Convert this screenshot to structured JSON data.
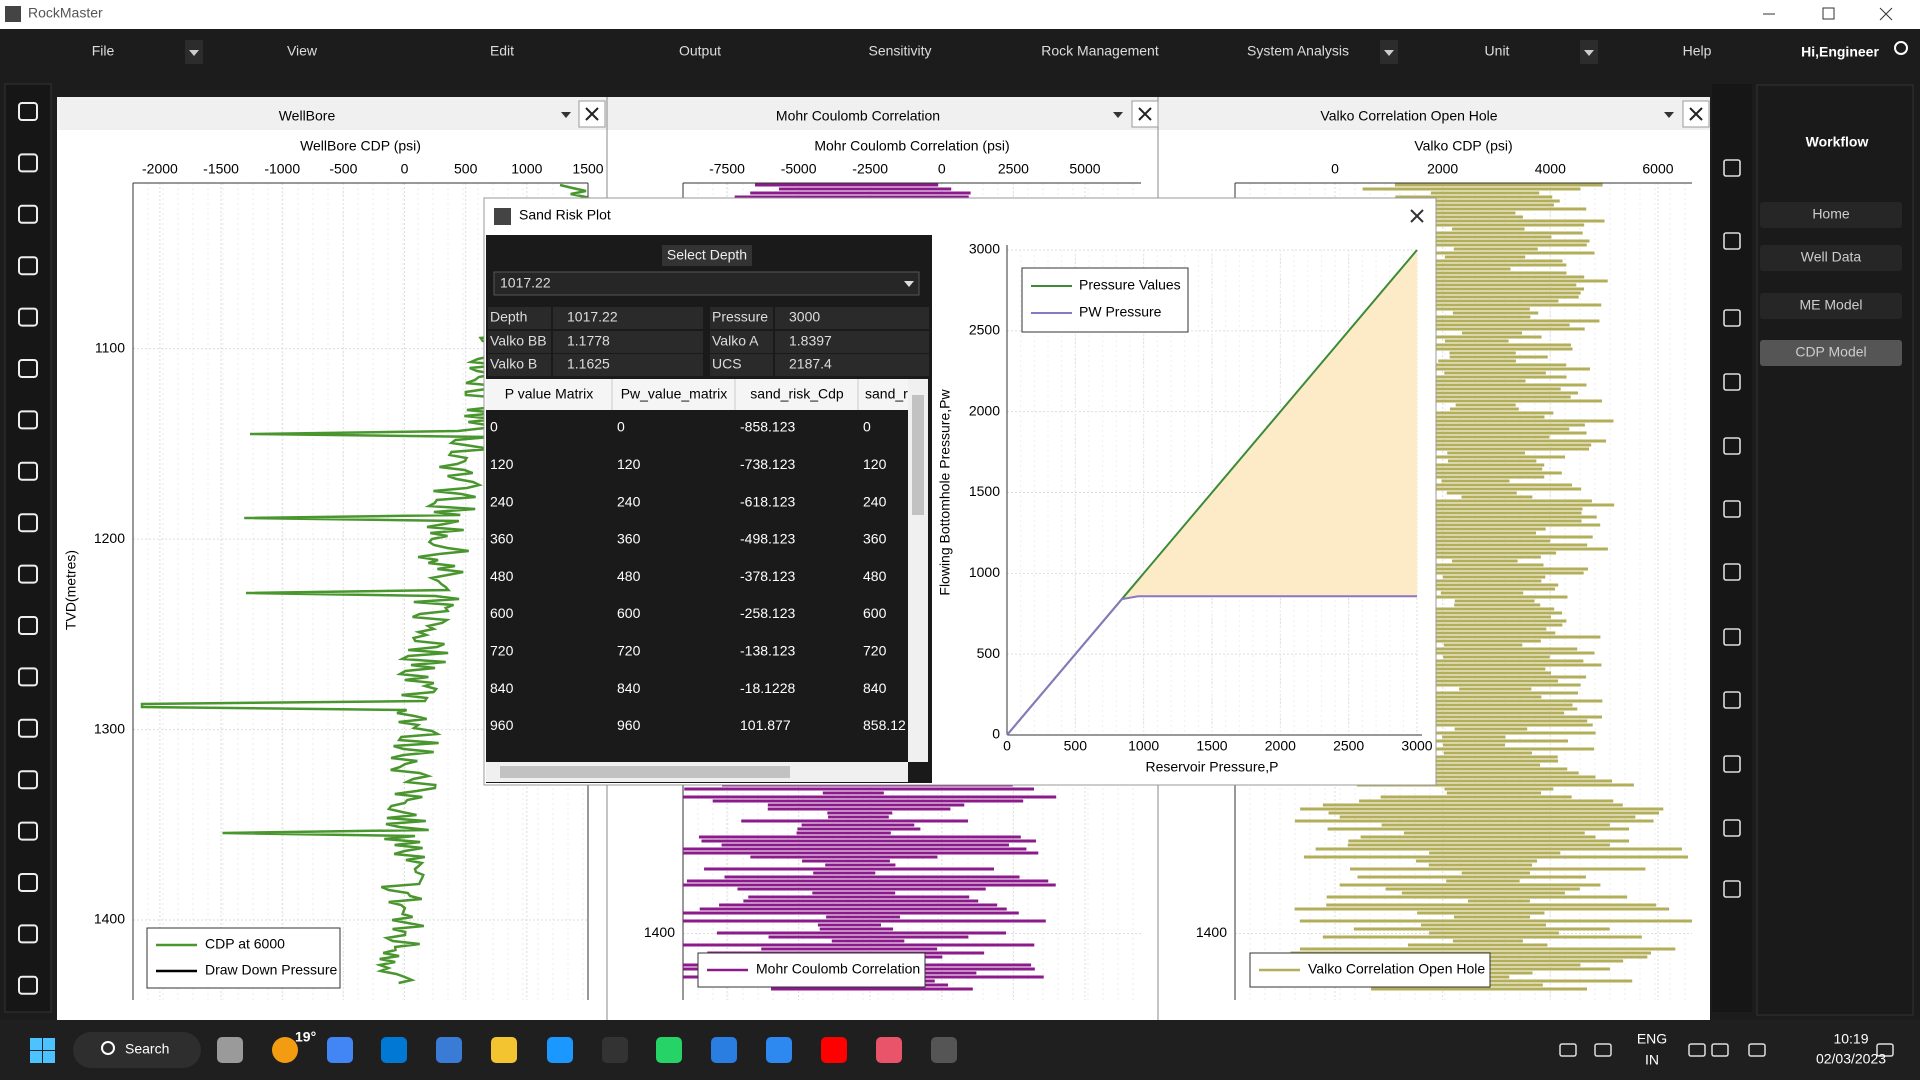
{
  "window": {
    "title": "RockMaster"
  },
  "menu": [
    "File",
    "View",
    "Edit",
    "Output",
    "Sensitivity",
    "Rock Management",
    "System Analysis",
    "Unit",
    "Help"
  ],
  "user": "Hi,Engineer",
  "panels": [
    {
      "title": "WellBore",
      "axis_title": "WellBore CDP (psi)",
      "ylabel": "TVD(metres)",
      "xticks": [
        -2000,
        -1500,
        -1000,
        -500,
        0,
        500,
        1000,
        1500
      ],
      "xlim": [
        -2220,
        1500
      ],
      "yticks": [
        1100,
        1200,
        1300,
        1400
      ],
      "ylim": [
        1013,
        1442
      ],
      "legend": [
        {
          "name": "CDP at 6000",
          "color": "#4a962e"
        },
        {
          "name": "Draw Down Pressure",
          "color": "#000000"
        }
      ]
    },
    {
      "title": "Mohr Coulomb Correlation",
      "axis_title": "Mohr Coulomb Correlation (psi)",
      "xticks": [
        -7500,
        -5000,
        -2500,
        0,
        2500,
        5000
      ],
      "xlim": [
        -9036,
        6955
      ],
      "yticks": [
        1400
      ],
      "ylim": [
        1005,
        1435
      ],
      "legend": [
        {
          "name": "Mohr Coulomb Correlation",
          "color": "#8b1a8b"
        }
      ]
    },
    {
      "title": "Valko Correlation Open Hole",
      "axis_title": "Valko CDP (psi)",
      "xticks": [
        0,
        2000,
        4000,
        6000
      ],
      "xlim": [
        -1858,
        6632
      ],
      "yticks": [
        1400
      ],
      "ylim": [
        1005,
        1435
      ],
      "legend": [
        {
          "name": "Valko Correlation Open Hole",
          "color": "#b3ae5a"
        }
      ]
    }
  ],
  "dialog": {
    "title": "Sand Risk Plot",
    "select_label": "Select Depth",
    "selected_depth": 1017.22,
    "fields": [
      [
        "Depth",
        1017.22
      ],
      [
        "Pressure",
        3000
      ],
      [
        "Valko BB",
        1.1778
      ],
      [
        "Valko A",
        1.8397
      ],
      [
        "Valko B",
        1.1625
      ],
      [
        "UCS",
        2187.4
      ]
    ],
    "table": {
      "columns": [
        "P value Matrix",
        "Pw_value_matrix",
        "sand_risk_Cdp",
        "sand_r"
      ],
      "rows": [
        [
          0,
          0,
          -858.123,
          0
        ],
        [
          120,
          120,
          -738.123,
          120
        ],
        [
          240,
          240,
          -618.123,
          240
        ],
        [
          360,
          360,
          -498.123,
          360
        ],
        [
          480,
          480,
          -378.123,
          480
        ],
        [
          600,
          600,
          -258.123,
          600
        ],
        [
          720,
          720,
          -138.123,
          720
        ],
        [
          840,
          840,
          -18.1228,
          840
        ],
        [
          960,
          960,
          101.877,
          858.12
        ]
      ]
    }
  },
  "chart_data": {
    "type": "line",
    "xlabel": "Reservoir Pressure,P",
    "ylabel": "Flowing Bottomhole Pressure,Pw",
    "x": [
      0,
      840,
      960,
      3000
    ],
    "series": [
      {
        "name": "Pressure Values",
        "color": "#3d8b37",
        "values": [
          0,
          840,
          960,
          3000
        ]
      },
      {
        "name": "PW Pressure",
        "color": "#8878c0",
        "values": [
          0,
          840,
          858.12,
          858.12
        ]
      }
    ],
    "xlim": [
      0,
      3000
    ],
    "ylim": [
      0,
      3000
    ],
    "xticks": [
      0,
      500,
      1000,
      1500,
      2000,
      2500,
      3000
    ],
    "yticks": [
      0,
      500,
      1000,
      1500,
      2000,
      2500,
      3000
    ],
    "grid": true,
    "fill_color": "#fdebc8",
    "legend": "upper left"
  },
  "workflow": {
    "title": "Workflow",
    "buttons": [
      "Home",
      "Well Data",
      "ME Model",
      "CDP Model"
    ],
    "active": 3
  },
  "taskbar": {
    "search": "Search",
    "weather": "19°",
    "lang": [
      "ENG",
      "IN"
    ],
    "time": "10:19",
    "date": "02/03/2023"
  }
}
